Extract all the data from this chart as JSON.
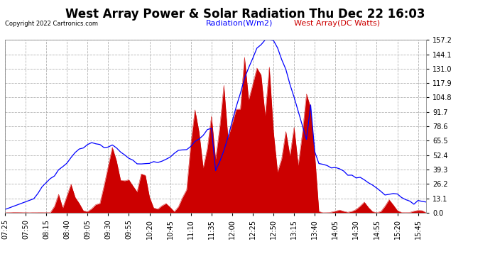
{
  "title": "West Array Power & Solar Radiation Thu Dec 22 16:03",
  "copyright": "Copyright 2022 Cartronics.com",
  "legend_radiation": "Radiation(W/m2)",
  "legend_west": "West Array(DC Watts)",
  "ymin": 0.0,
  "ymax": 157.2,
  "yticks": [
    0.0,
    13.1,
    26.2,
    39.3,
    52.4,
    65.5,
    78.6,
    91.7,
    104.8,
    117.9,
    131.0,
    "144.1",
    157.2
  ],
  "bg_color": "#ffffff",
  "grid_color": "#aaaaaa",
  "radiation_color": "#0000ff",
  "west_color": "#cc0000",
  "title_fontsize": 12,
  "tick_fontsize": 7,
  "legend_fontsize": 8
}
